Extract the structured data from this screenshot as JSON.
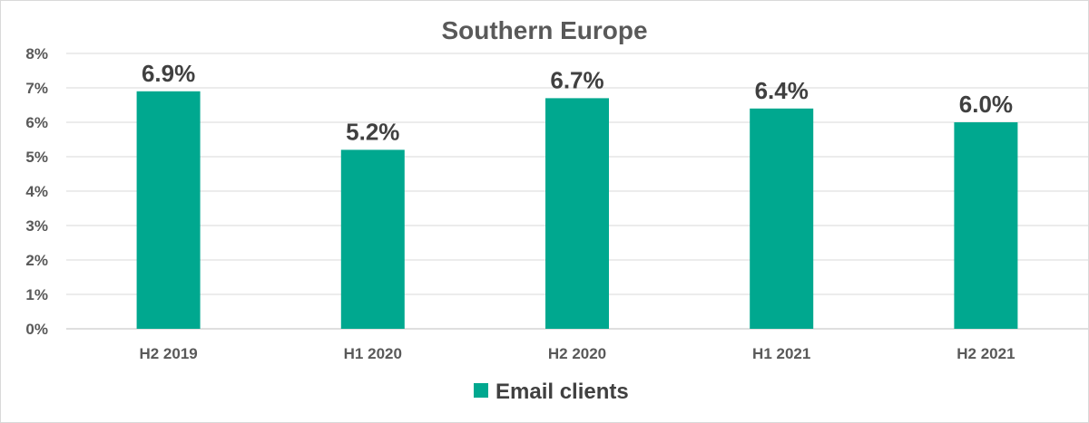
{
  "chart_data": {
    "type": "bar",
    "title": "Southern Europe",
    "categories": [
      "H2 2019",
      "H1 2020",
      "H2 2020",
      "H1 2021",
      "H2 2021"
    ],
    "series": [
      {
        "name": "Email clients",
        "values": [
          6.9,
          5.2,
          6.7,
          6.4,
          6.0
        ],
        "color": "#00a88f"
      }
    ],
    "data_labels": [
      "6.9%",
      "5.2%",
      "6.7%",
      "6.4%",
      "6.0%"
    ],
    "ylim": [
      0,
      8
    ],
    "yticks": [
      "0%",
      "1%",
      "2%",
      "3%",
      "4%",
      "5%",
      "6%",
      "7%",
      "8%"
    ],
    "grid": true,
    "legend_position": "bottom"
  }
}
